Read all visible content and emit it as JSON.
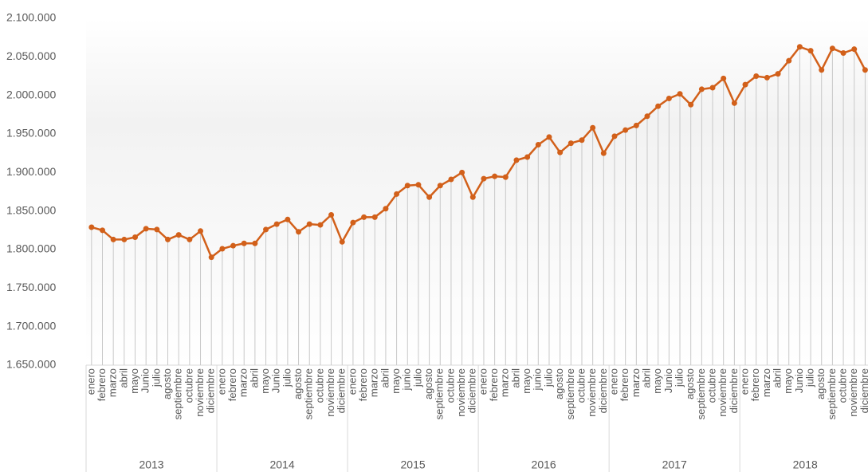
{
  "chart_data": {
    "type": "line",
    "categories": [
      "enero",
      "febrero",
      "marzo",
      "abril",
      "mayo",
      "Junio",
      "julio",
      "agosto",
      "septiembre",
      "octubre",
      "noviembre",
      "diciembre",
      "enero",
      "febrero",
      "marzo",
      "abril",
      "mayo",
      "Junio",
      "julio",
      "agosto",
      "septiembre",
      "octubre",
      "noviembre",
      "diciembre",
      "enero",
      "febrero",
      "marzo",
      "abril",
      "mayo",
      "junio",
      "julio",
      "agosto",
      "septiembre",
      "octubre",
      "noviembre",
      "diciembre",
      "enero",
      "febrero",
      "marzo",
      "abril",
      "mayo",
      "junio",
      "julio",
      "agosto",
      "septiembre",
      "octubre",
      "noviembre",
      "diciembre",
      "enero",
      "febrero",
      "marzo",
      "abril",
      "mayo",
      "Junio",
      "julio",
      "agosto",
      "septiembre",
      "octubre",
      "noviembre",
      "diciembre",
      "enero",
      "febrero",
      "marzo",
      "abril",
      "mayo",
      "Junio",
      "julio",
      "agosto",
      "septiembre",
      "octubre",
      "noviembre",
      "diciembre"
    ],
    "years": [
      "2013",
      "2014",
      "2015",
      "2016",
      "2017",
      "2018"
    ],
    "series": [
      {
        "color": "#d2601a",
        "values": [
          1829000,
          1825000,
          1813000,
          1813000,
          1816000,
          1827000,
          1826000,
          1813000,
          1819000,
          1813000,
          1824000,
          1790000,
          1801000,
          1805000,
          1808000,
          1808000,
          1826000,
          1833000,
          1839000,
          1823000,
          1833000,
          1832000,
          1845000,
          1810000,
          1835000,
          1842000,
          1842000,
          1853000,
          1872000,
          1883000,
          1884000,
          1868000,
          1883000,
          1891000,
          1900000,
          1868000,
          1892000,
          1895000,
          1894000,
          1916000,
          1920000,
          1936000,
          1946000,
          1926000,
          1938000,
          1942000,
          1958000,
          1925000,
          1947000,
          1955000,
          1961000,
          1973000,
          1986000,
          1996000,
          2002000,
          1988000,
          2008000,
          2010000,
          2022000,
          1990000,
          2014000,
          2025000,
          2023000,
          2028000,
          2045000,
          2063000,
          2058000,
          2033000,
          2061000,
          2055000,
          2060000,
          2033000
        ]
      }
    ],
    "ylim": [
      1650000,
      2100000
    ],
    "yticks": [
      {
        "value": 1650000,
        "label": "1.650.000"
      },
      {
        "value": 1700000,
        "label": "1.700.000"
      },
      {
        "value": 1750000,
        "label": "1.750.000"
      },
      {
        "value": 1800000,
        "label": "1.800.000"
      },
      {
        "value": 1850000,
        "label": "1.850.000"
      },
      {
        "value": 1900000,
        "label": "1.900.000"
      },
      {
        "value": 1950000,
        "label": "1.950.000"
      },
      {
        "value": 2000000,
        "label": "2.000.000"
      },
      {
        "value": 2050000,
        "label": "2.050.000"
      },
      {
        "value": 2100000,
        "label": "2.100.000"
      }
    ]
  }
}
